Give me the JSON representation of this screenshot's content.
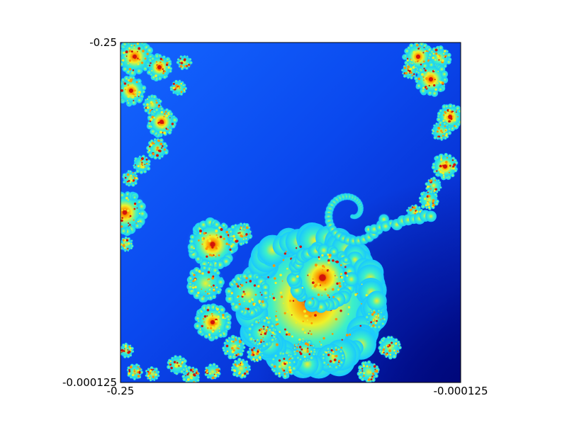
{
  "chart_data": {
    "type": "heatmap",
    "title": "",
    "xlabel": "",
    "ylabel": "",
    "xlim": [
      -0.25,
      -0.000125
    ],
    "ylim": [
      -0.000125,
      -0.25
    ],
    "x_tick_labels": [
      "-0.25",
      "-0.000125"
    ],
    "y_tick_labels": [
      "-0.25",
      "-0.000125"
    ],
    "grid": false,
    "legend": "none",
    "colormap": "jet",
    "content": "Mandelbrot-like fractal escape-time image",
    "colors": {
      "background_blue": "#0a50f0",
      "dark_blue": "#000a8c",
      "cyan": "#19c8ff",
      "aqua": "#3cf0c8",
      "yellow": "#f0f028",
      "orange": "#ff9600",
      "red": "#d2140a",
      "axes_frame": "#000000"
    }
  }
}
